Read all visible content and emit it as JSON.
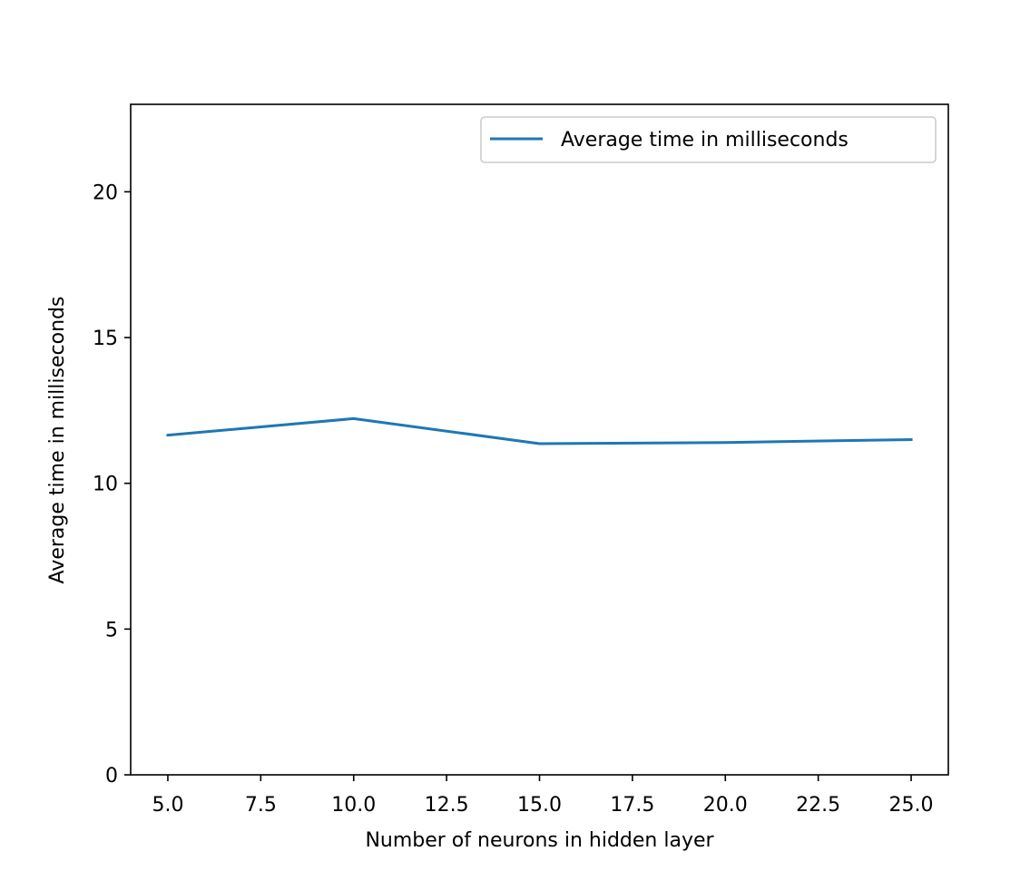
{
  "chart_data": {
    "type": "line",
    "title": "",
    "xlabel": "Number of neurons in hidden layer",
    "ylabel": "Average time in milliseconds",
    "xlim": [
      4,
      26
    ],
    "ylim": [
      0,
      23
    ],
    "xticks": [
      5.0,
      7.5,
      10.0,
      12.5,
      15.0,
      17.5,
      20.0,
      22.5,
      25.0
    ],
    "xtick_labels": [
      "5.0",
      "7.5",
      "10.0",
      "12.5",
      "15.0",
      "17.5",
      "20.0",
      "22.5",
      "25.0"
    ],
    "yticks": [
      0,
      5,
      10,
      15,
      20
    ],
    "ytick_labels": [
      "0",
      "5",
      "10",
      "15",
      "20"
    ],
    "grid": false,
    "legend_position": "top-right",
    "series": [
      {
        "name": "Average time in milliseconds",
        "color": "#1f77b4",
        "x": [
          5,
          10,
          15,
          20,
          25
        ],
        "y": [
          11.65,
          12.22,
          11.36,
          11.4,
          11.5
        ]
      }
    ]
  }
}
